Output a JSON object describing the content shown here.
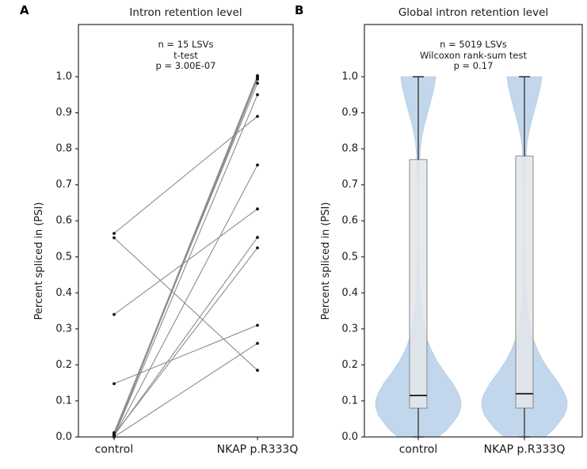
{
  "colors": {
    "background": "#ffffff",
    "axis": "#2b2b2b",
    "text": "#1a1a1a",
    "slope_line": "#8c8c8c",
    "point": "#141414",
    "violin_fill": "#c3d7ec",
    "violin_edge": "#b3cce6",
    "box_fill": "#e3e6e9",
    "box_edge": "#85898d",
    "median": "#222222",
    "whisker": "#222222"
  },
  "chart_data": [
    {
      "type": "line",
      "variant": "paired-slope",
      "panel_label": "A",
      "title": "Intron retention level",
      "categories": [
        "control",
        "NKAP p.R333Q"
      ],
      "ylabel": "Percent spliced in (PSI)",
      "ylim": [
        0,
        1
      ],
      "ytick_labels": [
        "0.0",
        "0.1",
        "0.2",
        "0.3",
        "0.4",
        "0.5",
        "0.6",
        "0.7",
        "0.8",
        "0.9",
        "1.0"
      ],
      "annotation": [
        "n = 15 LSVs",
        "t-test",
        "p = 3.00E-07"
      ],
      "n_pairs": 15,
      "pairs": [
        [
          0.565,
          0.89
        ],
        [
          0.553,
          0.185
        ],
        [
          0.34,
          0.633
        ],
        [
          0.148,
          0.31
        ],
        [
          0.002,
          1.0
        ],
        [
          0.005,
          0.997
        ],
        [
          0.008,
          1.003
        ],
        [
          0.003,
          0.993
        ],
        [
          0.01,
          1.0
        ],
        [
          0.012,
          0.982
        ],
        [
          0.001,
          0.95
        ],
        [
          0.0,
          0.755
        ],
        [
          0.004,
          0.554
        ],
        [
          0.006,
          0.525
        ],
        [
          0.0,
          0.26
        ]
      ]
    },
    {
      "type": "violin",
      "panel_label": "B",
      "title": "Global intron retention level",
      "categories": [
        "control",
        "NKAP p.R333Q"
      ],
      "ylabel": "Percent spliced in (PSI)",
      "ylim": [
        0,
        1
      ],
      "ytick_labels": [
        "0.0",
        "0.1",
        "0.2",
        "0.3",
        "0.4",
        "0.5",
        "0.6",
        "0.7",
        "0.8",
        "0.9",
        "1.0"
      ],
      "annotation": [
        "n = 5019 LSVs",
        "Wilcoxon rank-sum test",
        "p = 0.17"
      ],
      "n_lsvs": 5019,
      "series": [
        {
          "name": "control",
          "box": {
            "whisker_low": 0.0,
            "q1": 0.08,
            "median": 0.115,
            "q3": 0.77,
            "whisker_high": 1.0
          }
        },
        {
          "name": "NKAP p.R333Q",
          "box": {
            "whisker_low": 0.0,
            "q1": 0.08,
            "median": 0.12,
            "q3": 0.78,
            "whisker_high": 1.0
          }
        }
      ],
      "violin_profile": [
        [
          0.0,
          0.48
        ],
        [
          0.01,
          0.57
        ],
        [
          0.02,
          0.67
        ],
        [
          0.04,
          0.81
        ],
        [
          0.06,
          0.93
        ],
        [
          0.08,
          0.99
        ],
        [
          0.1,
          1.0
        ],
        [
          0.12,
          0.94
        ],
        [
          0.15,
          0.8
        ],
        [
          0.18,
          0.61
        ],
        [
          0.21,
          0.44
        ],
        [
          0.24,
          0.31
        ],
        [
          0.27,
          0.21
        ],
        [
          0.3,
          0.15
        ],
        [
          0.34,
          0.09
        ],
        [
          0.38,
          0.055
        ],
        [
          0.44,
          0.033
        ],
        [
          0.52,
          0.022
        ],
        [
          0.62,
          0.02
        ],
        [
          0.72,
          0.024
        ],
        [
          0.78,
          0.037
        ],
        [
          0.82,
          0.065
        ],
        [
          0.86,
          0.13
        ],
        [
          0.9,
          0.22
        ],
        [
          0.94,
          0.31
        ],
        [
          0.97,
          0.37
        ],
        [
          1.0,
          0.41
        ]
      ]
    }
  ]
}
